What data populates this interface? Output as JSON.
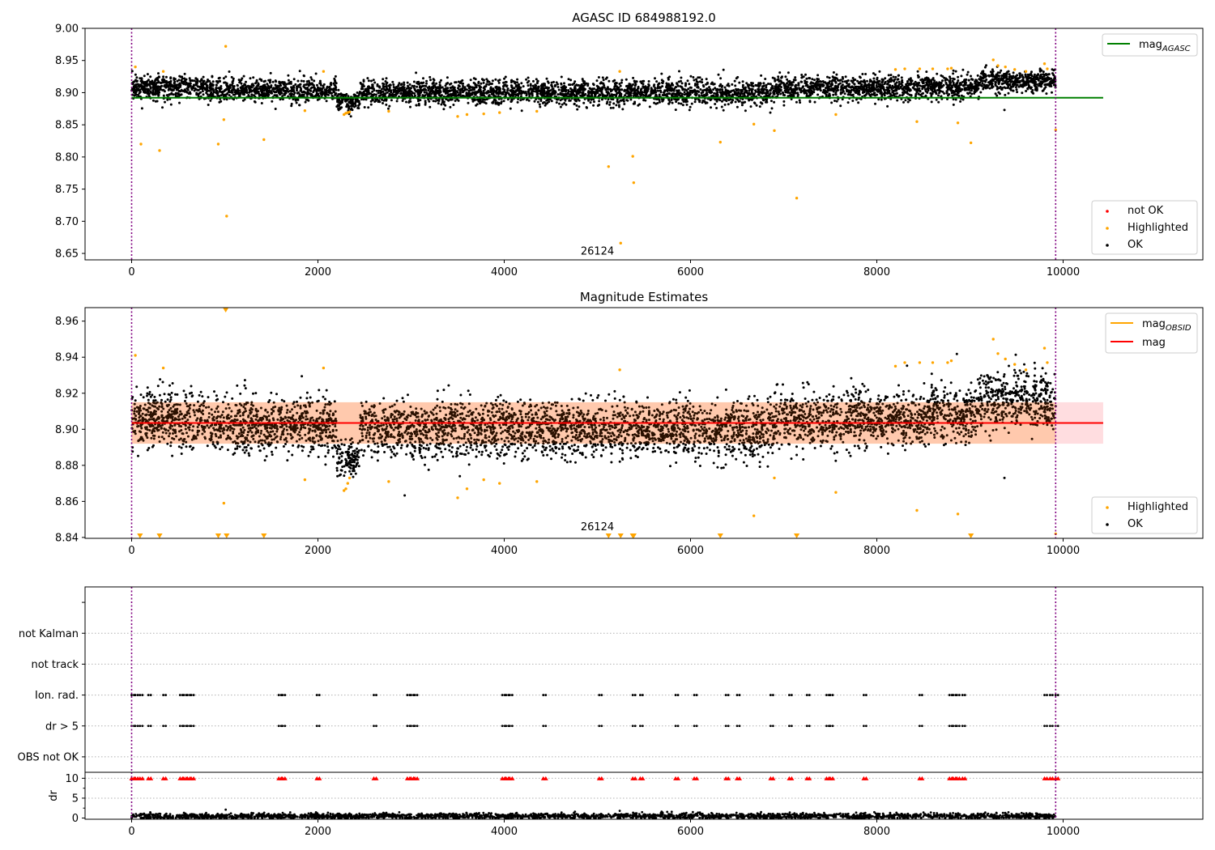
{
  "chart_data": [
    {
      "type": "scatter",
      "title": "AGASC ID 684988192.0",
      "xlim": [
        -500,
        11500
      ],
      "ylim": [
        8.64,
        9.0
      ],
      "xticks": [
        0,
        2000,
        4000,
        6000,
        8000,
        10000
      ],
      "yticks": [
        8.65,
        8.7,
        8.75,
        8.8,
        8.85,
        8.9,
        8.95,
        9.0
      ],
      "ytick_decimals": 2,
      "annotation": {
        "text": "26124",
        "x": 5000,
        "y": 8.648
      },
      "vlines": [
        0,
        9920
      ],
      "colors": {
        "ok": "#000000",
        "highlighted": "#ffa500",
        "not_ok": "#ff0000",
        "agasc": "#008000"
      },
      "reference_lines": [
        {
          "key": "mag_agasc",
          "name": "mag",
          "subscript": "AGASC",
          "y": 8.892,
          "x_range": [
            0,
            10430
          ],
          "color": "#008000"
        }
      ],
      "legend_lines": {
        "location": "upper right",
        "entries": [
          {
            "name": "mag",
            "subscript": "AGASC",
            "color": "#008000"
          }
        ]
      },
      "legend_points": {
        "location": "lower right",
        "entries": [
          {
            "name": "not OK",
            "color": "#ff0000"
          },
          {
            "name": "Highlighted",
            "color": "#ffa500"
          },
          {
            "name": "OK",
            "color": "#000000"
          }
        ]
      },
      "ok_band": {
        "x_range": [
          0,
          9920
        ],
        "segments": [
          {
            "x": [
              0,
              800
            ],
            "mean": 8.908,
            "spread": 0.011
          },
          {
            "x": [
              800,
              2200
            ],
            "mean": 8.904,
            "spread": 0.011
          },
          {
            "x": [
              2200,
              2450
            ],
            "mean": 8.886,
            "spread": 0.008
          },
          {
            "x": [
              2450,
              6900
            ],
            "mean": 8.9,
            "spread": 0.011
          },
          {
            "x": [
              6900,
              8500
            ],
            "mean": 8.907,
            "spread": 0.011
          },
          {
            "x": [
              8500,
              9100
            ],
            "mean": 8.91,
            "spread": 0.011
          },
          {
            "x": [
              9100,
              9920
            ],
            "mean": 8.918,
            "spread": 0.01
          }
        ]
      },
      "highlighted_points": [
        [
          40,
          8.94
        ],
        [
          100,
          8.82
        ],
        [
          300,
          8.81
        ],
        [
          340,
          8.933
        ],
        [
          930,
          8.82
        ],
        [
          990,
          8.858
        ],
        [
          1010,
          8.972
        ],
        [
          1020,
          8.708
        ],
        [
          1420,
          8.827
        ],
        [
          1860,
          8.872
        ],
        [
          2060,
          8.933
        ],
        [
          2280,
          8.866
        ],
        [
          2300,
          8.868
        ],
        [
          2320,
          8.869
        ],
        [
          2340,
          8.87
        ],
        [
          2760,
          8.871
        ],
        [
          3500,
          8.863
        ],
        [
          3600,
          8.866
        ],
        [
          3780,
          8.867
        ],
        [
          3950,
          8.869
        ],
        [
          4350,
          8.871
        ],
        [
          5120,
          8.785
        ],
        [
          5240,
          8.933
        ],
        [
          5250,
          8.666
        ],
        [
          5380,
          8.801
        ],
        [
          5390,
          8.76
        ],
        [
          6320,
          8.823
        ],
        [
          6680,
          8.851
        ],
        [
          6900,
          8.841
        ],
        [
          7140,
          8.736
        ],
        [
          7560,
          8.866
        ],
        [
          8200,
          8.936
        ],
        [
          8300,
          8.937
        ],
        [
          8430,
          8.855
        ],
        [
          8460,
          8.937
        ],
        [
          8600,
          8.937
        ],
        [
          8760,
          8.937
        ],
        [
          8800,
          8.938
        ],
        [
          8870,
          8.853
        ],
        [
          9010,
          8.822
        ],
        [
          9250,
          8.951
        ],
        [
          9300,
          8.942
        ],
        [
          9380,
          8.94
        ],
        [
          9480,
          8.936
        ],
        [
          9600,
          8.933
        ],
        [
          9800,
          8.945
        ],
        [
          9830,
          8.937
        ],
        [
          9920,
          8.842
        ]
      ],
      "extra_ok_points": [
        [
          9370,
          8.873
        ]
      ]
    },
    {
      "type": "scatter",
      "title": "Magnitude Estimates",
      "xlim": [
        -500,
        11500
      ],
      "ylim": [
        8.8395,
        8.9675
      ],
      "xticks": [
        0,
        2000,
        4000,
        6000,
        8000,
        10000
      ],
      "yticks": [
        8.84,
        8.86,
        8.88,
        8.9,
        8.92,
        8.94,
        8.96
      ],
      "ytick_decimals": 2,
      "annotation": {
        "text": "26124",
        "x": 5000,
        "y": 8.844
      },
      "vlines": [
        0,
        9920
      ],
      "colors": {
        "ok": "#000000",
        "highlighted": "#ffa500",
        "band_inner": "#ffc9ad",
        "band_outer": "#ffdde0",
        "mag": "#ff0000",
        "mag_obsid": "#ffa500",
        "dark_points": "#2a1000"
      },
      "reference_lines": [
        {
          "key": "mag",
          "name": "mag",
          "y": 8.9035,
          "x_range": [
            0,
            10430
          ],
          "color": "#ff0000"
        }
      ],
      "bands": [
        {
          "x_range": [
            0,
            9920
          ],
          "y_range": [
            8.892,
            8.915
          ],
          "color": "#ffc9ad"
        },
        {
          "x_range": [
            9920,
            10430
          ],
          "y_range": [
            8.892,
            8.915
          ],
          "color": "#ffdde0"
        }
      ],
      "legend_lines": {
        "location": "upper right",
        "entries": [
          {
            "name": "mag",
            "subscript": "OBSID",
            "color": "#ffa500"
          },
          {
            "name": "mag",
            "color": "#ff0000"
          }
        ]
      },
      "legend_points": {
        "location": "lower right",
        "entries": [
          {
            "name": "Highlighted",
            "color": "#ffa500"
          },
          {
            "name": "OK",
            "color": "#000000"
          }
        ]
      },
      "ok_band": {
        "x_range": [
          0,
          9920
        ],
        "segments": [
          {
            "x": [
              0,
              800
            ],
            "mean": 8.905,
            "spread": 0.009
          },
          {
            "x": [
              800,
              2200
            ],
            "mean": 8.902,
            "spread": 0.009
          },
          {
            "x": [
              2200,
              2450
            ],
            "mean": 8.884,
            "spread": 0.006
          },
          {
            "x": [
              2450,
              6900
            ],
            "mean": 8.9,
            "spread": 0.009
          },
          {
            "x": [
              6900,
              8500
            ],
            "mean": 8.906,
            "spread": 0.009
          },
          {
            "x": [
              8500,
              9100
            ],
            "mean": 8.909,
            "spread": 0.009
          },
          {
            "x": [
              9100,
              9920
            ],
            "mean": 8.916,
            "spread": 0.009
          }
        ]
      },
      "highlighted_points": [
        [
          40,
          8.941
        ],
        [
          340,
          8.934
        ],
        [
          990,
          8.859
        ],
        [
          1860,
          8.872
        ],
        [
          2060,
          8.934
        ],
        [
          2280,
          8.866
        ],
        [
          2300,
          8.867
        ],
        [
          2320,
          8.87
        ],
        [
          2340,
          8.873
        ],
        [
          2760,
          8.871
        ],
        [
          3500,
          8.862
        ],
        [
          3600,
          8.867
        ],
        [
          3780,
          8.872
        ],
        [
          3950,
          8.87
        ],
        [
          4350,
          8.871
        ],
        [
          5240,
          8.933
        ],
        [
          6680,
          8.852
        ],
        [
          6900,
          8.873
        ],
        [
          7560,
          8.865
        ],
        [
          8200,
          8.935
        ],
        [
          8300,
          8.937
        ],
        [
          8430,
          8.855
        ],
        [
          8460,
          8.937
        ],
        [
          8600,
          8.937
        ],
        [
          8760,
          8.937
        ],
        [
          8800,
          8.938
        ],
        [
          8870,
          8.853
        ],
        [
          9250,
          8.95
        ],
        [
          9300,
          8.942
        ],
        [
          9380,
          8.939
        ],
        [
          9480,
          8.936
        ],
        [
          9600,
          8.933
        ],
        [
          9800,
          8.945
        ],
        [
          9830,
          8.937
        ],
        [
          9920,
          8.842
        ]
      ],
      "highlighted_off_scale_bottom": [
        90,
        300,
        930,
        1020,
        1420,
        5120,
        5250,
        5380,
        5390,
        6320,
        7140,
        9010
      ],
      "highlighted_off_scale_top": [
        1010
      ],
      "extra_ok_points": [
        [
          9370,
          8.873
        ]
      ]
    },
    {
      "type": "scatter",
      "title": "",
      "xlim": [
        -500,
        11500
      ],
      "ylim": [
        -0.5,
        5.5
      ],
      "yticks": [
        0,
        1,
        2,
        3,
        4,
        5
      ],
      "ytick_labels": [
        "OBS not OK",
        "dr > 5",
        "Ion. rad.",
        "not track",
        "not Kalman",
        ""
      ],
      "vlines": [
        0,
        9920
      ],
      "grid": "horizontal dotted",
      "colors": {
        "flag": "#000000"
      },
      "flag_rows": [
        {
          "label": "dr > 5",
          "y": 1,
          "x": [
            0,
            40,
            90,
            180,
            340,
            520,
            560,
            600,
            640,
            1580,
            1620,
            1990,
            2600,
            2960,
            3000,
            3040,
            3980,
            4020,
            4060,
            4420,
            5020,
            5380,
            5460,
            5840,
            6040,
            6380,
            6500,
            6860,
            7060,
            7250,
            7460,
            7500,
            7860,
            8460,
            8780,
            8820,
            8860,
            8920,
            9800,
            9860,
            9920
          ]
        },
        {
          "label": "Ion. rad.",
          "y": 2,
          "x": [
            0,
            40,
            90,
            180,
            340,
            520,
            560,
            600,
            640,
            1580,
            1620,
            1990,
            2600,
            2960,
            3000,
            3040,
            3980,
            4020,
            4060,
            4420,
            5020,
            5380,
            5460,
            5840,
            6040,
            6380,
            6500,
            6860,
            7060,
            7250,
            7460,
            7500,
            7860,
            8460,
            8780,
            8820,
            8860,
            8920,
            9800,
            9860,
            9920
          ]
        }
      ]
    },
    {
      "type": "scatter",
      "title": "",
      "ylabel": "dr",
      "xlim": [
        -500,
        11500
      ],
      "ylim": [
        -0.3,
        11.5
      ],
      "xticks": [
        0,
        2000,
        4000,
        6000,
        8000,
        10000
      ],
      "yticks": [
        0,
        5,
        10
      ],
      "ytick_decimals": 0,
      "vlines": [
        0,
        9920
      ],
      "colors": {
        "ok": "#000000",
        "capped": "#ff0000"
      },
      "ok_band": {
        "x_range": [
          0,
          9920
        ],
        "mean": 0.5,
        "spread": 0.35
      },
      "extra_points": [
        [
          1010,
          2.1
        ],
        [
          5240,
          1.8
        ]
      ],
      "capped_value": 10,
      "capped_x": [
        0,
        40,
        90,
        180,
        340,
        520,
        560,
        600,
        640,
        1580,
        1620,
        1990,
        2600,
        2960,
        3000,
        3040,
        3980,
        4020,
        4060,
        4420,
        5020,
        5380,
        5460,
        5840,
        6040,
        6380,
        6500,
        6860,
        7060,
        7250,
        7460,
        7500,
        7860,
        8460,
        8780,
        8820,
        8860,
        8920,
        9800,
        9860,
        9920
      ]
    }
  ]
}
